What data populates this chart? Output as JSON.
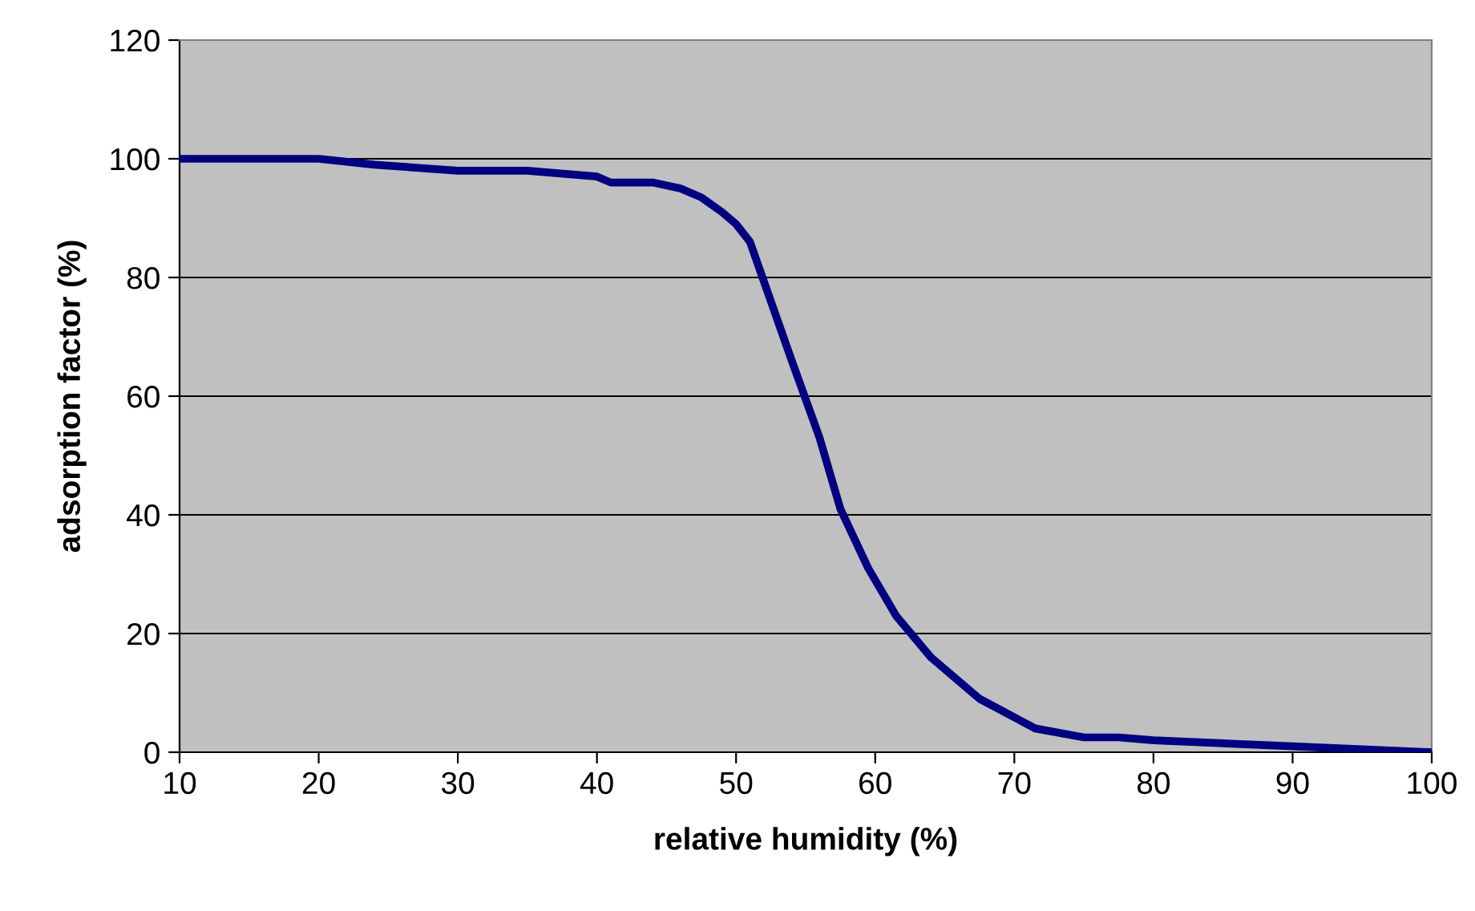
{
  "chart_data": {
    "type": "line",
    "xlabel": "relative humidity (%)",
    "ylabel": "adsorption factor (%)",
    "series": [
      {
        "color": "#000080",
        "x": [
          10,
          20,
          24,
          30,
          35,
          40,
          41,
          44,
          46,
          47.5,
          49,
          50,
          51,
          52.5,
          54,
          56,
          57.5,
          59.5,
          61.5,
          64,
          67.5,
          71.5,
          75,
          77.5,
          80,
          90,
          100
        ],
        "values": [
          100,
          100,
          99,
          98,
          98,
          97,
          96,
          96,
          95,
          93.5,
          91,
          89,
          86,
          76,
          66,
          53,
          41,
          31,
          23,
          16,
          9,
          4,
          2.5,
          2.5,
          2,
          1,
          0
        ]
      }
    ],
    "xlim": [
      10,
      100
    ],
    "xticks": [
      10,
      20,
      30,
      40,
      50,
      60,
      70,
      80,
      90,
      100
    ],
    "ylim": [
      0,
      120
    ],
    "yticks": [
      0,
      20,
      40,
      60,
      80,
      100,
      120
    ],
    "grid": "y",
    "legend": false,
    "marker": "none",
    "line_style": "solid"
  }
}
